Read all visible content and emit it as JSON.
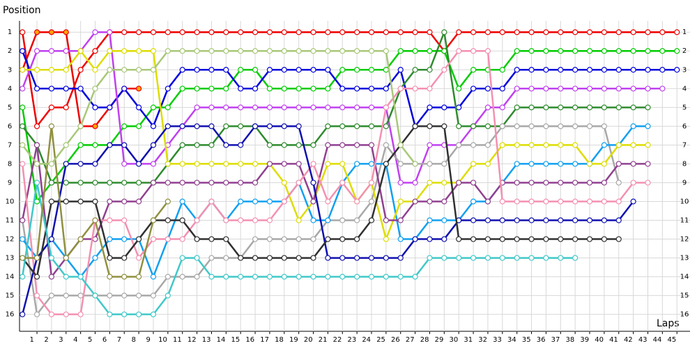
{
  "chart_data": {
    "type": "line",
    "y_axis_label": "Position",
    "x_axis_label": "Laps",
    "x": [
      0,
      1,
      2,
      3,
      4,
      5,
      6,
      7,
      8,
      9,
      10,
      11,
      12,
      13,
      14,
      15,
      16,
      17,
      18,
      19,
      20,
      21,
      22,
      23,
      24,
      25,
      26,
      27,
      28,
      29,
      30,
      31,
      32,
      33,
      34,
      35,
      36,
      37,
      38,
      39,
      40,
      41,
      42,
      43,
      44,
      45
    ],
    "xlim": [
      -0.2,
      45.9
    ],
    "xticks": [
      1,
      2,
      3,
      4,
      5,
      6,
      7,
      8,
      9,
      10,
      11,
      12,
      13,
      14,
      15,
      16,
      17,
      18,
      19,
      20,
      21,
      22,
      23,
      24,
      25,
      26,
      27,
      28,
      29,
      30,
      31,
      32,
      33,
      34,
      35,
      36,
      37,
      38,
      39,
      40,
      41,
      42,
      43,
      44,
      45
    ],
    "ylim": [
      0.4,
      16.9
    ],
    "y_inverted": true,
    "yticks": [
      1,
      2,
      3,
      4,
      5,
      6,
      7,
      8,
      9,
      10,
      11,
      12,
      13,
      14,
      15,
      16
    ],
    "grid": true,
    "series": [
      {
        "color": "#ee0000",
        "values": [
          1,
          6,
          5,
          5,
          3,
          2,
          1,
          1,
          1,
          1,
          1,
          1,
          1,
          1,
          1,
          1,
          1,
          1,
          1,
          1,
          1,
          1,
          1,
          1,
          1,
          1,
          1,
          1,
          1,
          2,
          1,
          1,
          1,
          1,
          1,
          1,
          1,
          1,
          1,
          1,
          1,
          1,
          1,
          1,
          1,
          1
        ]
      },
      {
        "color": "#ee0000",
        "marker_fill": "#ffa500",
        "values": [
          3,
          1,
          1,
          1,
          6,
          6,
          5,
          4,
          4,
          null,
          null,
          null,
          null,
          null,
          null,
          null,
          null,
          null,
          null,
          null,
          null,
          null,
          null,
          null,
          null,
          null,
          null,
          null,
          null,
          null,
          null,
          null,
          null,
          null,
          null,
          null,
          null,
          null,
          null,
          null,
          null,
          null,
          null,
          null,
          null,
          null
        ]
      },
      {
        "color": "#00cc00",
        "values": [
          5,
          10,
          9,
          8,
          7,
          7,
          7,
          6,
          6,
          5,
          5,
          4,
          4,
          4,
          4,
          3,
          3,
          4,
          4,
          4,
          4,
          4,
          3,
          3,
          3,
          3,
          2,
          2,
          2,
          2,
          4,
          3,
          3,
          3,
          2,
          2,
          2,
          2,
          2,
          2,
          2,
          2,
          2,
          2,
          2,
          2
        ]
      },
      {
        "color": "#0000dd",
        "values": [
          2,
          4,
          4,
          4,
          4,
          5,
          5,
          4,
          5,
          6,
          4,
          3,
          3,
          3,
          3,
          4,
          4,
          3,
          3,
          3,
          3,
          3,
          4,
          4,
          4,
          4,
          3,
          6,
          5,
          5,
          5,
          4,
          4,
          4,
          3,
          3,
          3,
          3,
          3,
          3,
          3,
          3,
          3,
          3,
          3,
          3
        ]
      },
      {
        "color": "#c040f0",
        "values": [
          4,
          2,
          2,
          2,
          2,
          1,
          1,
          8,
          8,
          8,
          7,
          6,
          5,
          5,
          5,
          5,
          5,
          5,
          5,
          5,
          5,
          5,
          5,
          5,
          5,
          5,
          9,
          9,
          7,
          7,
          7,
          6,
          5,
          5,
          4,
          4,
          4,
          4,
          4,
          4,
          4,
          4,
          4,
          4,
          4,
          null
        ]
      },
      {
        "color": "#2e8b2e",
        "values": [
          6,
          7,
          9,
          9,
          9,
          9,
          9,
          9,
          9,
          9,
          8,
          7,
          7,
          7,
          6,
          6,
          6,
          7,
          7,
          7,
          7,
          6,
          6,
          6,
          6,
          6,
          4,
          3,
          3,
          1,
          6,
          6,
          6,
          6,
          5,
          5,
          5,
          5,
          5,
          5,
          5,
          5,
          5,
          5,
          null,
          null
        ]
      },
      {
        "color": "#a8a8a8",
        "values": [
          11,
          16,
          15,
          15,
          15,
          15,
          15,
          15,
          15,
          15,
          14,
          14,
          14,
          13,
          13,
          13,
          12,
          12,
          12,
          12,
          12,
          11,
          11,
          11,
          10,
          7,
          8,
          8,
          8,
          8,
          7,
          7,
          7,
          6,
          6,
          6,
          6,
          6,
          6,
          6,
          6,
          9,
          null,
          null,
          null,
          null
        ]
      },
      {
        "color": "#10a0f0",
        "values": [
          12,
          13,
          12,
          13,
          14,
          13,
          12,
          12,
          12,
          14,
          12,
          10,
          11,
          10,
          11,
          10,
          10,
          10,
          10,
          9,
          11,
          11,
          9,
          8,
          8,
          8,
          12,
          12,
          11,
          11,
          11,
          10,
          10,
          9,
          8,
          8,
          8,
          8,
          8,
          8,
          7,
          7,
          6,
          6,
          null,
          null
        ]
      },
      {
        "color": "#dddd00",
        "values": [
          3,
          3,
          3,
          3,
          2,
          3,
          2,
          2,
          2,
          2,
          8,
          8,
          8,
          8,
          8,
          8,
          8,
          8,
          9,
          11,
          10,
          8,
          8,
          10,
          9,
          12,
          10,
          10,
          9,
          9,
          9,
          8,
          8,
          7,
          7,
          7,
          7,
          7,
          7,
          8,
          8,
          7,
          7,
          7,
          null,
          null
        ]
      },
      {
        "color": "#904090",
        "values": [
          11,
          7,
          14,
          13,
          12,
          12,
          10,
          10,
          10,
          9,
          9,
          9,
          9,
          9,
          9,
          9,
          9,
          8,
          8,
          8,
          10,
          7,
          7,
          7,
          7,
          11,
          11,
          10,
          10,
          10,
          9,
          9,
          10,
          9,
          9,
          9,
          9,
          9,
          9,
          9,
          9,
          8,
          8,
          8,
          null,
          null
        ]
      },
      {
        "color": "#f490b0",
        "values": [
          8,
          15,
          16,
          16,
          16,
          11,
          11,
          11,
          13,
          12,
          12,
          12,
          11,
          10,
          11,
          11,
          11,
          11,
          10,
          9,
          8,
          10,
          9,
          10,
          9,
          5,
          4,
          4,
          4,
          3,
          2,
          2,
          2,
          10,
          10,
          10,
          10,
          10,
          10,
          10,
          10,
          10,
          9,
          9,
          null,
          null
        ]
      },
      {
        "color": "#1010b0",
        "values": [
          16,
          13,
          12,
          8,
          8,
          8,
          7,
          7,
          8,
          7,
          6,
          6,
          6,
          6,
          7,
          7,
          6,
          6,
          6,
          6,
          9,
          13,
          13,
          13,
          13,
          13,
          13,
          12,
          12,
          12,
          11,
          11,
          11,
          11,
          11,
          11,
          11,
          11,
          11,
          11,
          11,
          11,
          10,
          null,
          null,
          null
        ]
      },
      {
        "color": "#303030",
        "values": [
          13,
          14,
          10,
          10,
          10,
          10,
          13,
          13,
          12,
          11,
          11,
          11,
          12,
          12,
          12,
          13,
          13,
          13,
          13,
          13,
          13,
          12,
          12,
          12,
          11,
          8,
          7,
          6,
          6,
          6,
          12,
          12,
          12,
          12,
          12,
          12,
          12,
          12,
          12,
          12,
          12,
          12,
          null,
          null,
          null,
          null
        ]
      },
      {
        "color": "#40c8c8",
        "values": [
          14,
          9,
          13,
          14,
          14,
          15,
          16,
          16,
          16,
          16,
          15,
          13,
          13,
          14,
          14,
          14,
          14,
          14,
          14,
          14,
          14,
          14,
          14,
          14,
          14,
          14,
          14,
          14,
          13,
          13,
          13,
          13,
          13,
          13,
          13,
          13,
          13,
          13,
          13,
          null,
          null,
          null,
          null,
          null,
          null,
          null
        ]
      },
      {
        "color": "#909040",
        "values": [
          13,
          13,
          6,
          13,
          12,
          11,
          14,
          14,
          14,
          11,
          10,
          null,
          null,
          null,
          null,
          null,
          null,
          null,
          null,
          null,
          null,
          null,
          null,
          null,
          null,
          null,
          null,
          null,
          null,
          null,
          null,
          null,
          null,
          null,
          null,
          null,
          null,
          null,
          null,
          null,
          null,
          null,
          null,
          null,
          null,
          null
        ]
      },
      {
        "color": "#a8c878",
        "values": [
          7,
          8,
          8,
          7,
          6,
          4,
          3,
          3,
          3,
          3,
          2,
          2,
          2,
          2,
          2,
          2,
          2,
          2,
          2,
          2,
          2,
          2,
          2,
          2,
          2,
          2,
          7,
          8,
          null,
          null,
          null,
          null,
          null,
          null,
          null,
          null,
          null,
          null,
          null,
          null,
          null,
          null,
          null,
          null,
          null,
          null
        ]
      }
    ]
  }
}
